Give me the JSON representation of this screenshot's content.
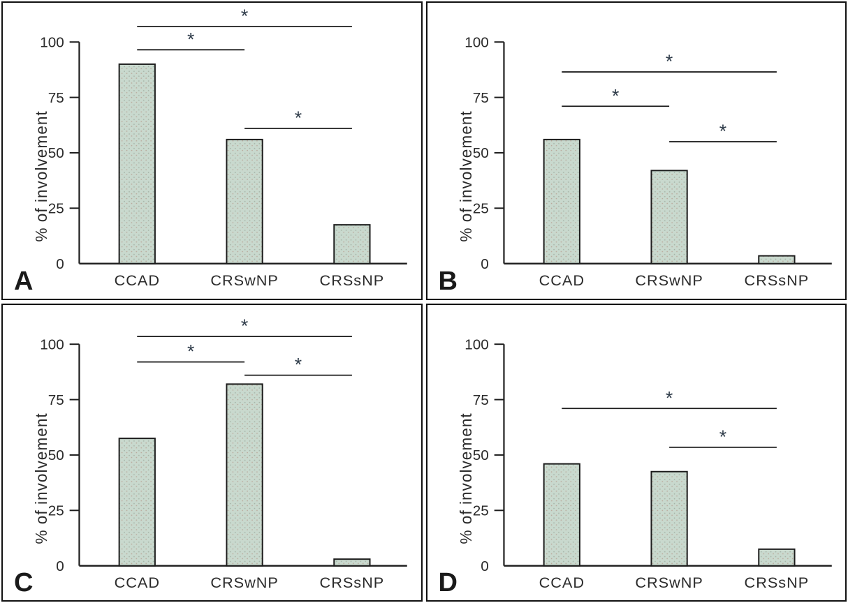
{
  "style": {
    "background": "#ffffff",
    "panel_border": "#111111",
    "bar_fill": "#c9d9ce",
    "bar_dot_green": "#a4b4a7",
    "bar_dot_brown": "#b9a79a",
    "bar_stroke": "#1c1c1c",
    "axis_color": "#1c1c1c",
    "text_color": "#2b2b2b",
    "marker_color": "#2e3b49"
  },
  "chart_data": [
    {
      "type": "bar",
      "panel_label": "A",
      "title": "",
      "xlabel": "",
      "ylabel": "% of involvement",
      "categories": [
        "CCAD",
        "CRSwNP",
        "CRSsNP"
      ],
      "values": [
        90,
        56,
        17.5
      ],
      "yticks": [
        0,
        25,
        50,
        75,
        100
      ],
      "ylim": [
        0,
        117
      ],
      "grid": false,
      "legend": false,
      "significance_markers": [
        {
          "from": "CCAD",
          "to": "CRSsNP",
          "y": 107,
          "label": "*"
        },
        {
          "from": "CCAD",
          "to": "CRSwNP",
          "y": 96.5,
          "label": "*"
        },
        {
          "from": "CRSwNP",
          "to": "CRSsNP",
          "y": 61,
          "label": "*"
        }
      ]
    },
    {
      "type": "bar",
      "panel_label": "B",
      "title": "",
      "xlabel": "",
      "ylabel": "% of involvement",
      "categories": [
        "CCAD",
        "CRSwNP",
        "CRSsNP"
      ],
      "values": [
        56,
        42,
        3.5
      ],
      "yticks": [
        0,
        25,
        50,
        75,
        100
      ],
      "ylim": [
        0,
        117
      ],
      "grid": false,
      "legend": false,
      "significance_markers": [
        {
          "from": "CCAD",
          "to": "CRSsNP",
          "y": 86.5,
          "label": "*"
        },
        {
          "from": "CCAD",
          "to": "CRSwNP",
          "y": 71,
          "label": "*"
        },
        {
          "from": "CRSwNP",
          "to": "CRSsNP",
          "y": 55,
          "label": "*"
        }
      ]
    },
    {
      "type": "bar",
      "panel_label": "C",
      "title": "",
      "xlabel": "",
      "ylabel": "% of involvement",
      "categories": [
        "CCAD",
        "CRSwNP",
        "CRSsNP"
      ],
      "values": [
        57.5,
        82,
        3
      ],
      "yticks": [
        0,
        25,
        50,
        75,
        100
      ],
      "ylim": [
        0,
        117
      ],
      "grid": false,
      "legend": false,
      "significance_markers": [
        {
          "from": "CCAD",
          "to": "CRSsNP",
          "y": 103.5,
          "label": "*"
        },
        {
          "from": "CCAD",
          "to": "CRSwNP",
          "y": 92,
          "label": "*"
        },
        {
          "from": "CRSwNP",
          "to": "CRSsNP",
          "y": 86,
          "label": "*"
        }
      ]
    },
    {
      "type": "bar",
      "panel_label": "D",
      "title": "",
      "xlabel": "",
      "ylabel": "% of involvement",
      "categories": [
        "CCAD",
        "CRSwNP",
        "CRSsNP"
      ],
      "values": [
        46,
        42.5,
        7.5
      ],
      "yticks": [
        0,
        25,
        50,
        75,
        100
      ],
      "ylim": [
        0,
        117
      ],
      "grid": false,
      "legend": false,
      "significance_markers": [
        {
          "from": "CCAD",
          "to": "CRSsNP",
          "y": 71,
          "label": "*"
        },
        {
          "from": "CRSwNP",
          "to": "CRSsNP",
          "y": 53.5,
          "label": "*"
        }
      ]
    }
  ]
}
